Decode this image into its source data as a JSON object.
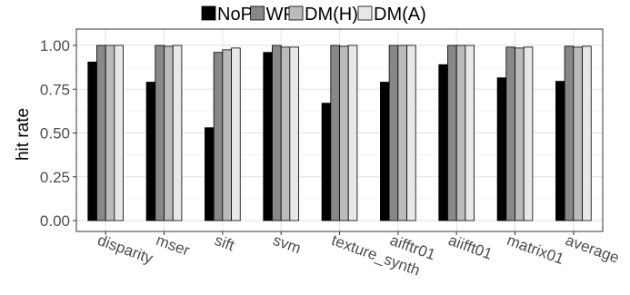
{
  "chart_data": {
    "type": "bar",
    "ylabel": "hit rate",
    "xlabel": "",
    "ylim": [
      0,
      1.0
    ],
    "yticks": [
      0.0,
      0.25,
      0.5,
      0.75,
      1.0
    ],
    "ytick_labels": [
      "0.00",
      "0.25",
      "0.50",
      "0.75",
      "1.00"
    ],
    "grid": true,
    "legend_position": "top",
    "categories": [
      "disparity",
      "mser",
      "sift",
      "svm",
      "texture_synth",
      "aifftr01",
      "aiifft01",
      "matrix01",
      "average"
    ],
    "series": [
      {
        "name": "NoP",
        "color": "#000000",
        "values": [
          0.905,
          0.79,
          0.53,
          0.96,
          0.67,
          0.79,
          0.89,
          0.815,
          0.795
        ]
      },
      {
        "name": "WP",
        "color": "#888888",
        "values": [
          1.0,
          1.0,
          0.96,
          1.0,
          1.0,
          1.0,
          1.0,
          0.99,
          0.995
        ]
      },
      {
        "name": "DM(H)",
        "color": "#bbbbbb",
        "values": [
          1.0,
          0.995,
          0.975,
          0.99,
          0.995,
          1.0,
          1.0,
          0.985,
          0.99
        ]
      },
      {
        "name": "DM(A)",
        "color": "#e8e8e8",
        "values": [
          1.0,
          1.0,
          0.985,
          0.99,
          1.0,
          1.0,
          1.0,
          0.99,
          0.995
        ]
      }
    ]
  }
}
